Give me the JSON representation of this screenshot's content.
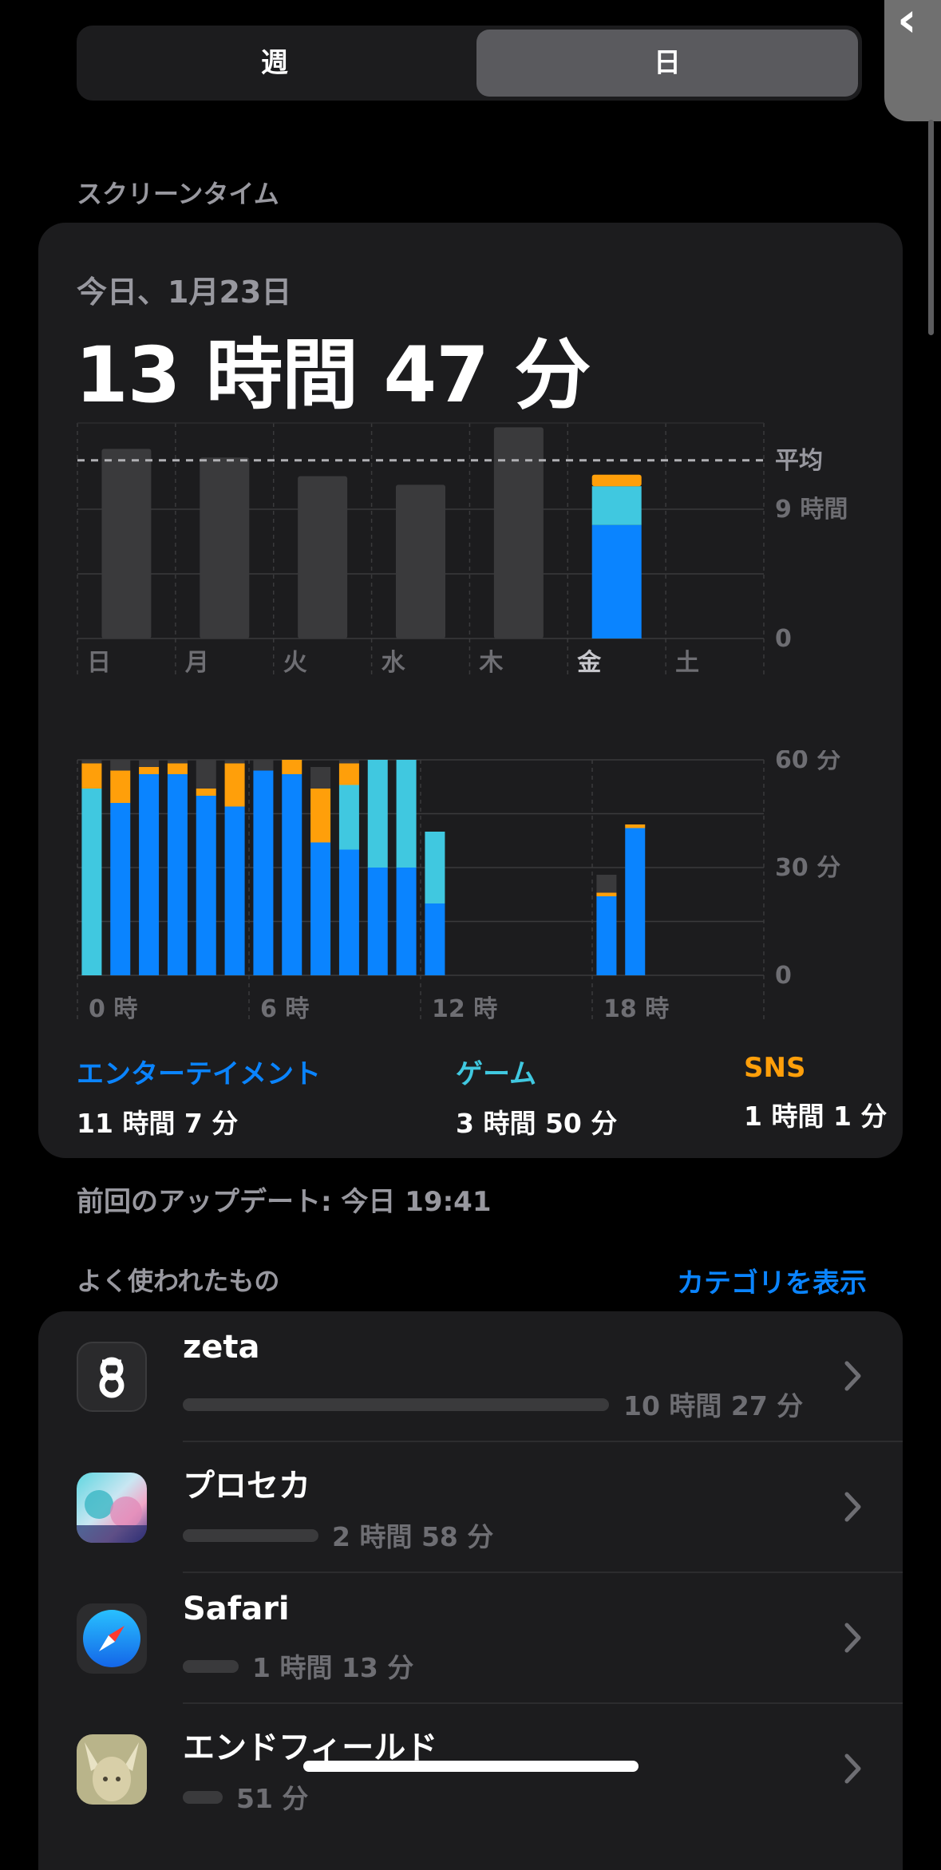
{
  "segmented": {
    "week_label": "週",
    "day_label": "日",
    "selected": "day"
  },
  "screen_time": {
    "section_label": "スクリーンタイム",
    "date_label": "今日、1月23日",
    "total": "13 時間 47 分"
  },
  "colors": {
    "entertainment": "#0a84ff",
    "games": "#40c8e0",
    "social": "#ff9f0a",
    "other": "#3a3a3c",
    "background": "#000000",
    "card": "#1c1c1e"
  },
  "chart_data": [
    {
      "type": "bar",
      "categories": [
        "日",
        "月",
        "火",
        "水",
        "木",
        "金",
        "土"
      ],
      "y_labels": [
        "平均",
        "9 時間",
        "0"
      ],
      "average_line": "dashed",
      "ylim": [
        0,
        15
      ],
      "series": [
        {
          "name": "other",
          "values": [
            13.2,
            12.6,
            11.3,
            10.7,
            14.7,
            0,
            0
          ]
        },
        {
          "name": "エンターテイメント",
          "values": [
            0,
            0,
            0,
            0,
            0,
            7.9,
            0
          ]
        },
        {
          "name": "ゲーム",
          "values": [
            0,
            0,
            0,
            0,
            0,
            2.7,
            0
          ]
        },
        {
          "name": "SNS",
          "values": [
            0,
            0,
            0,
            0,
            0,
            0.8,
            0
          ]
        }
      ],
      "highlight_category": "金"
    },
    {
      "type": "bar",
      "x_tick_labels": [
        "0 時",
        "6 時",
        "12 時",
        "18 時"
      ],
      "y_labels": [
        "60 分",
        "30 分",
        "0"
      ],
      "ylim": [
        0,
        60
      ],
      "hours": [
        0,
        1,
        2,
        3,
        4,
        5,
        6,
        7,
        8,
        9,
        10,
        11,
        12,
        18,
        19
      ],
      "series": [
        {
          "name": "エンターテイメント",
          "values": [
            0,
            48,
            56,
            56,
            50,
            47,
            57,
            56,
            37,
            35,
            30,
            30,
            20,
            22,
            41
          ]
        },
        {
          "name": "ゲーム",
          "values": [
            52,
            0,
            0,
            0,
            0,
            0,
            0,
            0,
            0,
            18,
            30,
            30,
            20,
            0,
            0
          ]
        },
        {
          "name": "SNS",
          "values": [
            7,
            9,
            2,
            3,
            2,
            12,
            0,
            4,
            15,
            6,
            0,
            0,
            0,
            1,
            1
          ]
        },
        {
          "name": "other",
          "values": [
            1,
            3,
            2,
            1,
            8,
            1,
            3,
            0,
            6,
            1,
            0,
            0,
            0,
            5,
            0
          ]
        }
      ]
    }
  ],
  "legend": [
    {
      "category": "エンターテイメント",
      "time": "11 時間 7 分",
      "color": "#0a84ff"
    },
    {
      "category": "ゲーム",
      "time": "3 時間 50 分",
      "color": "#40c8e0"
    },
    {
      "category": "SNS",
      "time": "1 時間 1 分",
      "color": "#ff9f0a"
    }
  ],
  "last_updated": "前回のアップデート: 今日 19:41",
  "most_used": {
    "section_label": "よく使われたもの",
    "show_categories_label": "カテゴリを表示",
    "apps": [
      {
        "name": "zeta",
        "time": "10 時間 27 分",
        "icon": "zeta-app-icon",
        "usage_fraction": 0.758
      },
      {
        "name": "プロセカ",
        "time": "2 時間 58 分",
        "icon": "project-sekai-app-icon",
        "usage_fraction": 0.216
      },
      {
        "name": "Safari",
        "time": "1 時間 13 分",
        "icon": "safari-app-icon",
        "usage_fraction": 0.088
      },
      {
        "name": "エンドフィールド",
        "time": "51 分",
        "icon": "endfield-app-icon",
        "usage_fraction": 0.062
      }
    ]
  }
}
